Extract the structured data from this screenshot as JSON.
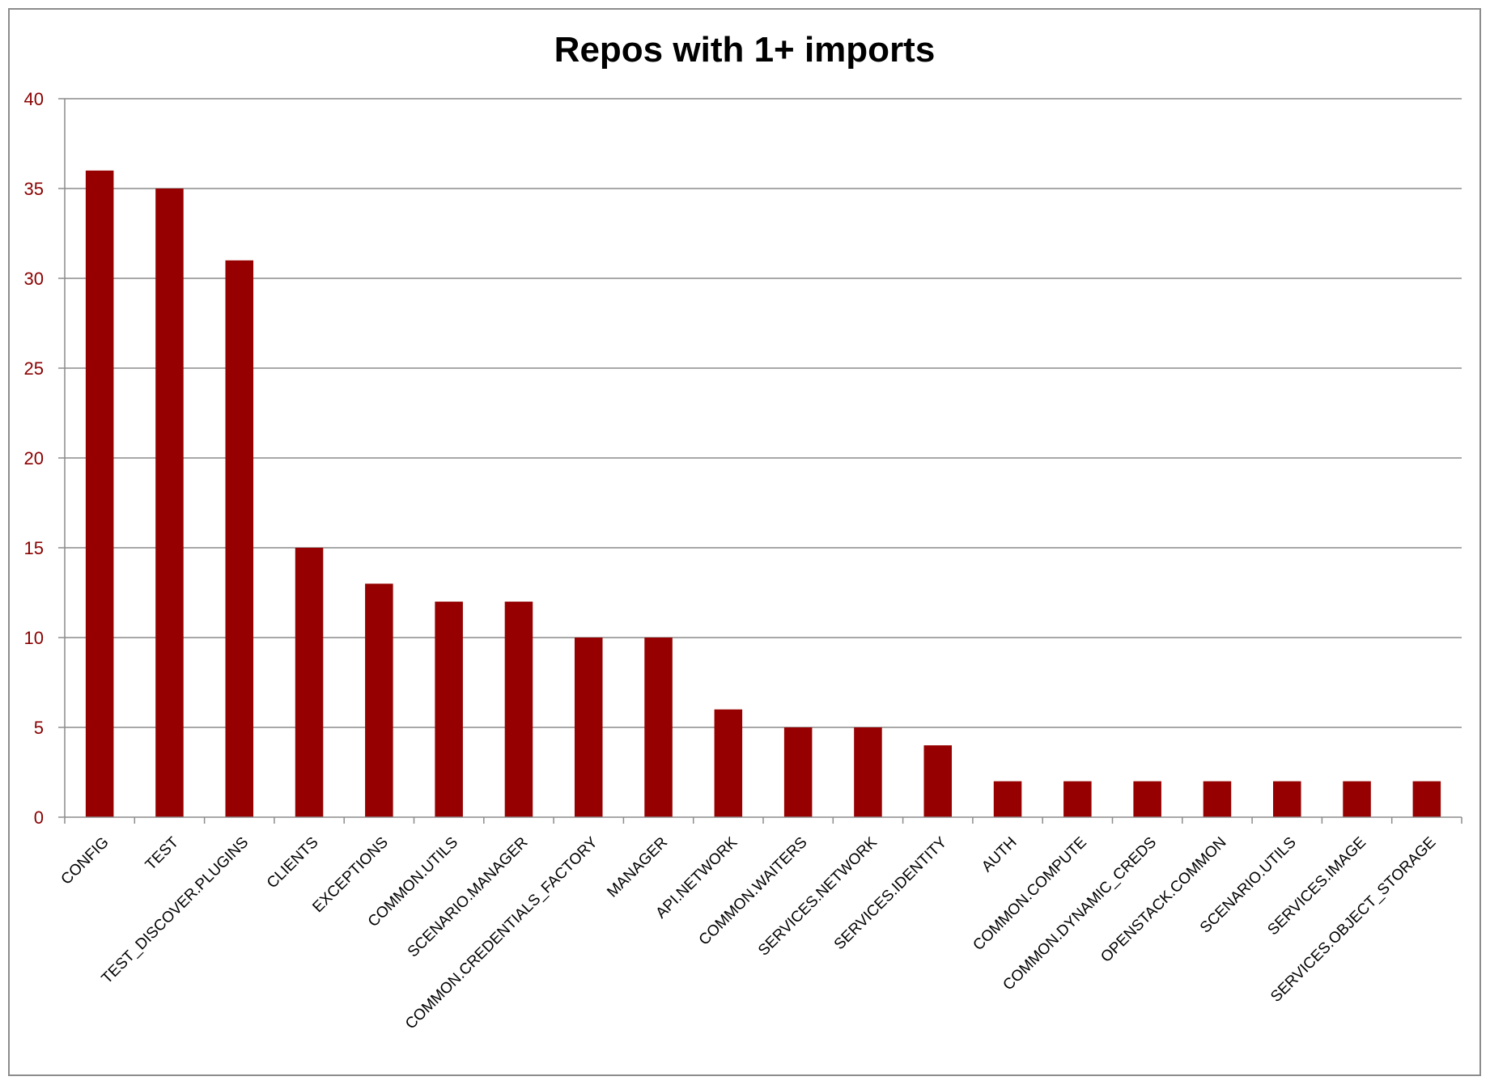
{
  "chart_data": {
    "type": "bar",
    "title": "Repos with 1+ imports",
    "xlabel": "",
    "ylabel": "",
    "ylim": [
      0,
      40
    ],
    "yticks": [
      "0",
      "5",
      "10",
      "15",
      "20",
      "25",
      "30",
      "35",
      "40"
    ],
    "grid": true,
    "legend": "none",
    "categories": [
      "CONFIG",
      "TEST",
      "TEST_DISCOVER.PLUGINS",
      "CLIENTS",
      "EXCEPTIONS",
      "COMMON.UTILS",
      "SCENARIO.MANAGER",
      "COMMON.CREDENTIALS_FACTORY",
      "MANAGER",
      "API.NETWORK",
      "COMMON.WAITERS",
      "SERVICES.NETWORK",
      "SERVICES.IDENTITY",
      "AUTH",
      "COMMON.COMPUTE",
      "COMMON.DYNAMIC_CREDS",
      "OPENSTACK.COMMON",
      "SCENARIO.UTILS",
      "SERVICES.IMAGE",
      "SERVICES.OBJECT_STORAGE"
    ],
    "values": [
      36,
      35,
      31,
      15,
      13,
      12,
      12,
      10,
      10,
      6,
      5,
      5,
      4,
      2,
      2,
      2,
      2,
      2,
      2,
      2
    ],
    "colors": {
      "bar": "#960000",
      "ytick_label": "#8b0000",
      "grid": "#8c8c8c",
      "axis": "#8c8c8c"
    }
  }
}
